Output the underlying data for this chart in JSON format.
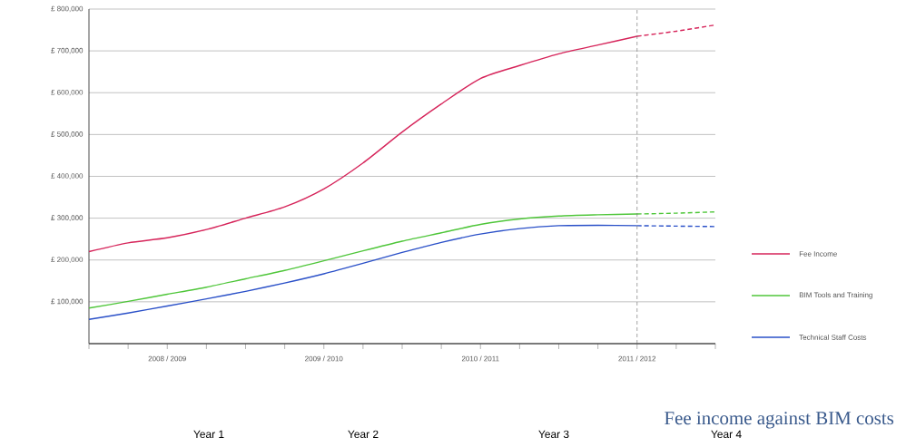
{
  "chart_data": {
    "type": "line",
    "title": "Fee income against BIM costs",
    "annotations": [
      "Year 1",
      "Year 2",
      "Year 3",
      "Year 4"
    ],
    "categories": [
      null,
      null,
      "2008 / 2009",
      null,
      null,
      null,
      "2009 / 2010",
      null,
      null,
      null,
      "2010 / 2011",
      null,
      null,
      null,
      "2011 / 2012",
      null,
      null
    ],
    "ylim": [
      0,
      800000
    ],
    "yticks": [
      {
        "value": 100000,
        "label": "£ 100,000"
      },
      {
        "value": 200000,
        "label": "£ 200,000"
      },
      {
        "value": 300000,
        "label": "£ 300,000"
      },
      {
        "value": 400000,
        "label": "£ 400,000"
      },
      {
        "value": 500000,
        "label": "£ 500,000"
      },
      {
        "value": 600000,
        "label": "£ 600,000"
      },
      {
        "value": 700000,
        "label": "£ 700,000"
      },
      {
        "value": 800000,
        "label": "£ 800,000"
      }
    ],
    "grid": "y",
    "legend": "right",
    "marker": "none",
    "ref_lines": [
      {
        "axis": "x",
        "value": "2011 / 2012",
        "color": "#666666",
        "line_style": "dashed"
      }
    ],
    "series": [
      {
        "name": "Fee Income",
        "color": "#d6245a",
        "line_style": "solid",
        "values": [
          220000,
          241000,
          253000,
          273000,
          300000,
          327000,
          370000,
          432000,
          506000,
          573000,
          634000,
          665000,
          693000,
          714000,
          735000,
          null,
          null
        ]
      },
      {
        "name": "BIM Tools and Training",
        "color": "#4fc63a",
        "line_style": "solid",
        "values": [
          85000,
          101000,
          118000,
          135000,
          155000,
          175000,
          198000,
          222000,
          245000,
          265000,
          285000,
          298000,
          305000,
          308000,
          310000,
          null,
          null
        ]
      },
      {
        "name": "Technical Staff Costs",
        "color": "#2a50c8",
        "line_style": "solid",
        "values": [
          58000,
          73000,
          90000,
          107000,
          125000,
          145000,
          167000,
          192000,
          218000,
          242000,
          262000,
          275000,
          282000,
          283000,
          282000,
          null,
          null
        ]
      },
      {
        "color": "#d6245a",
        "line_style": "dashed",
        "values": [
          null,
          null,
          null,
          null,
          null,
          null,
          null,
          null,
          null,
          null,
          null,
          null,
          null,
          null,
          735000,
          747000,
          762000
        ]
      },
      {
        "color": "#4fc63a",
        "line_style": "dashed",
        "values": [
          null,
          null,
          null,
          null,
          null,
          null,
          null,
          null,
          null,
          null,
          null,
          null,
          null,
          null,
          310000,
          312000,
          315000
        ]
      },
      {
        "color": "#2a50c8",
        "line_style": "dashed",
        "values": [
          null,
          null,
          null,
          null,
          null,
          null,
          null,
          null,
          null,
          null,
          null,
          null,
          null,
          null,
          282000,
          281000,
          280000
        ]
      }
    ]
  }
}
